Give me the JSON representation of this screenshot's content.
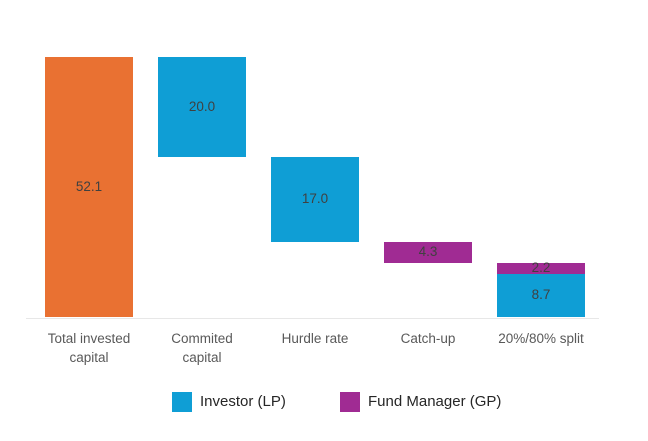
{
  "page": {
    "background": "#FFFFFF"
  },
  "chart_data": {
    "type": "bar",
    "subtype": "waterfall",
    "title": "",
    "xlabel": "",
    "ylabel": "",
    "ylim": [
      0,
      56
    ],
    "grid": false,
    "baseline": 0,
    "categories": [
      "Total invested capital",
      "Commited capital",
      "Hurdle rate",
      "Catch-up",
      "20%/80% split"
    ],
    "colors": {
      "total_invested": "#E97132",
      "investor_lp": "#0F9ED5",
      "fund_manager_gp": "#A02B93"
    },
    "text_colors": {
      "value_label": "#404040",
      "category_label": "#595959",
      "legend_label": "#262626"
    },
    "axis_line_color": "#E7E7E7",
    "bars": [
      {
        "category": "Total invested capital",
        "segments": [
          {
            "label": "52.1",
            "value": 52.1,
            "from": 0,
            "to": 52.1,
            "color_key": "total_invested",
            "role": "total"
          }
        ]
      },
      {
        "category": "Commited capital",
        "segments": [
          {
            "label": "20.0",
            "value": 20.0,
            "from": 32.1,
            "to": 52.1,
            "color_key": "investor_lp",
            "role": "investor"
          }
        ]
      },
      {
        "category": "Hurdle rate",
        "segments": [
          {
            "label": "17.0",
            "value": 17.0,
            "from": 15.1,
            "to": 32.1,
            "color_key": "investor_lp",
            "role": "investor"
          }
        ]
      },
      {
        "category": "Catch-up",
        "segments": [
          {
            "label": "4.3",
            "value": 4.3,
            "from": 10.8,
            "to": 15.1,
            "color_key": "fund_manager_gp",
            "role": "fund-manager"
          }
        ]
      },
      {
        "category": "20%/80% split",
        "segments": [
          {
            "label": "2.2",
            "value": 2.2,
            "from": 8.7,
            "to": 10.9,
            "color_key": "fund_manager_gp",
            "role": "fund-manager"
          },
          {
            "label": "8.7",
            "value": 8.7,
            "from": 0,
            "to": 8.7,
            "color_key": "investor_lp",
            "role": "investor"
          }
        ]
      }
    ],
    "legend": {
      "position": "bottom",
      "items": [
        {
          "label": "Investor (LP)",
          "color_key": "investor_lp"
        },
        {
          "label": "Fund Manager (GP)",
          "color_key": "fund_manager_gp"
        }
      ]
    }
  }
}
